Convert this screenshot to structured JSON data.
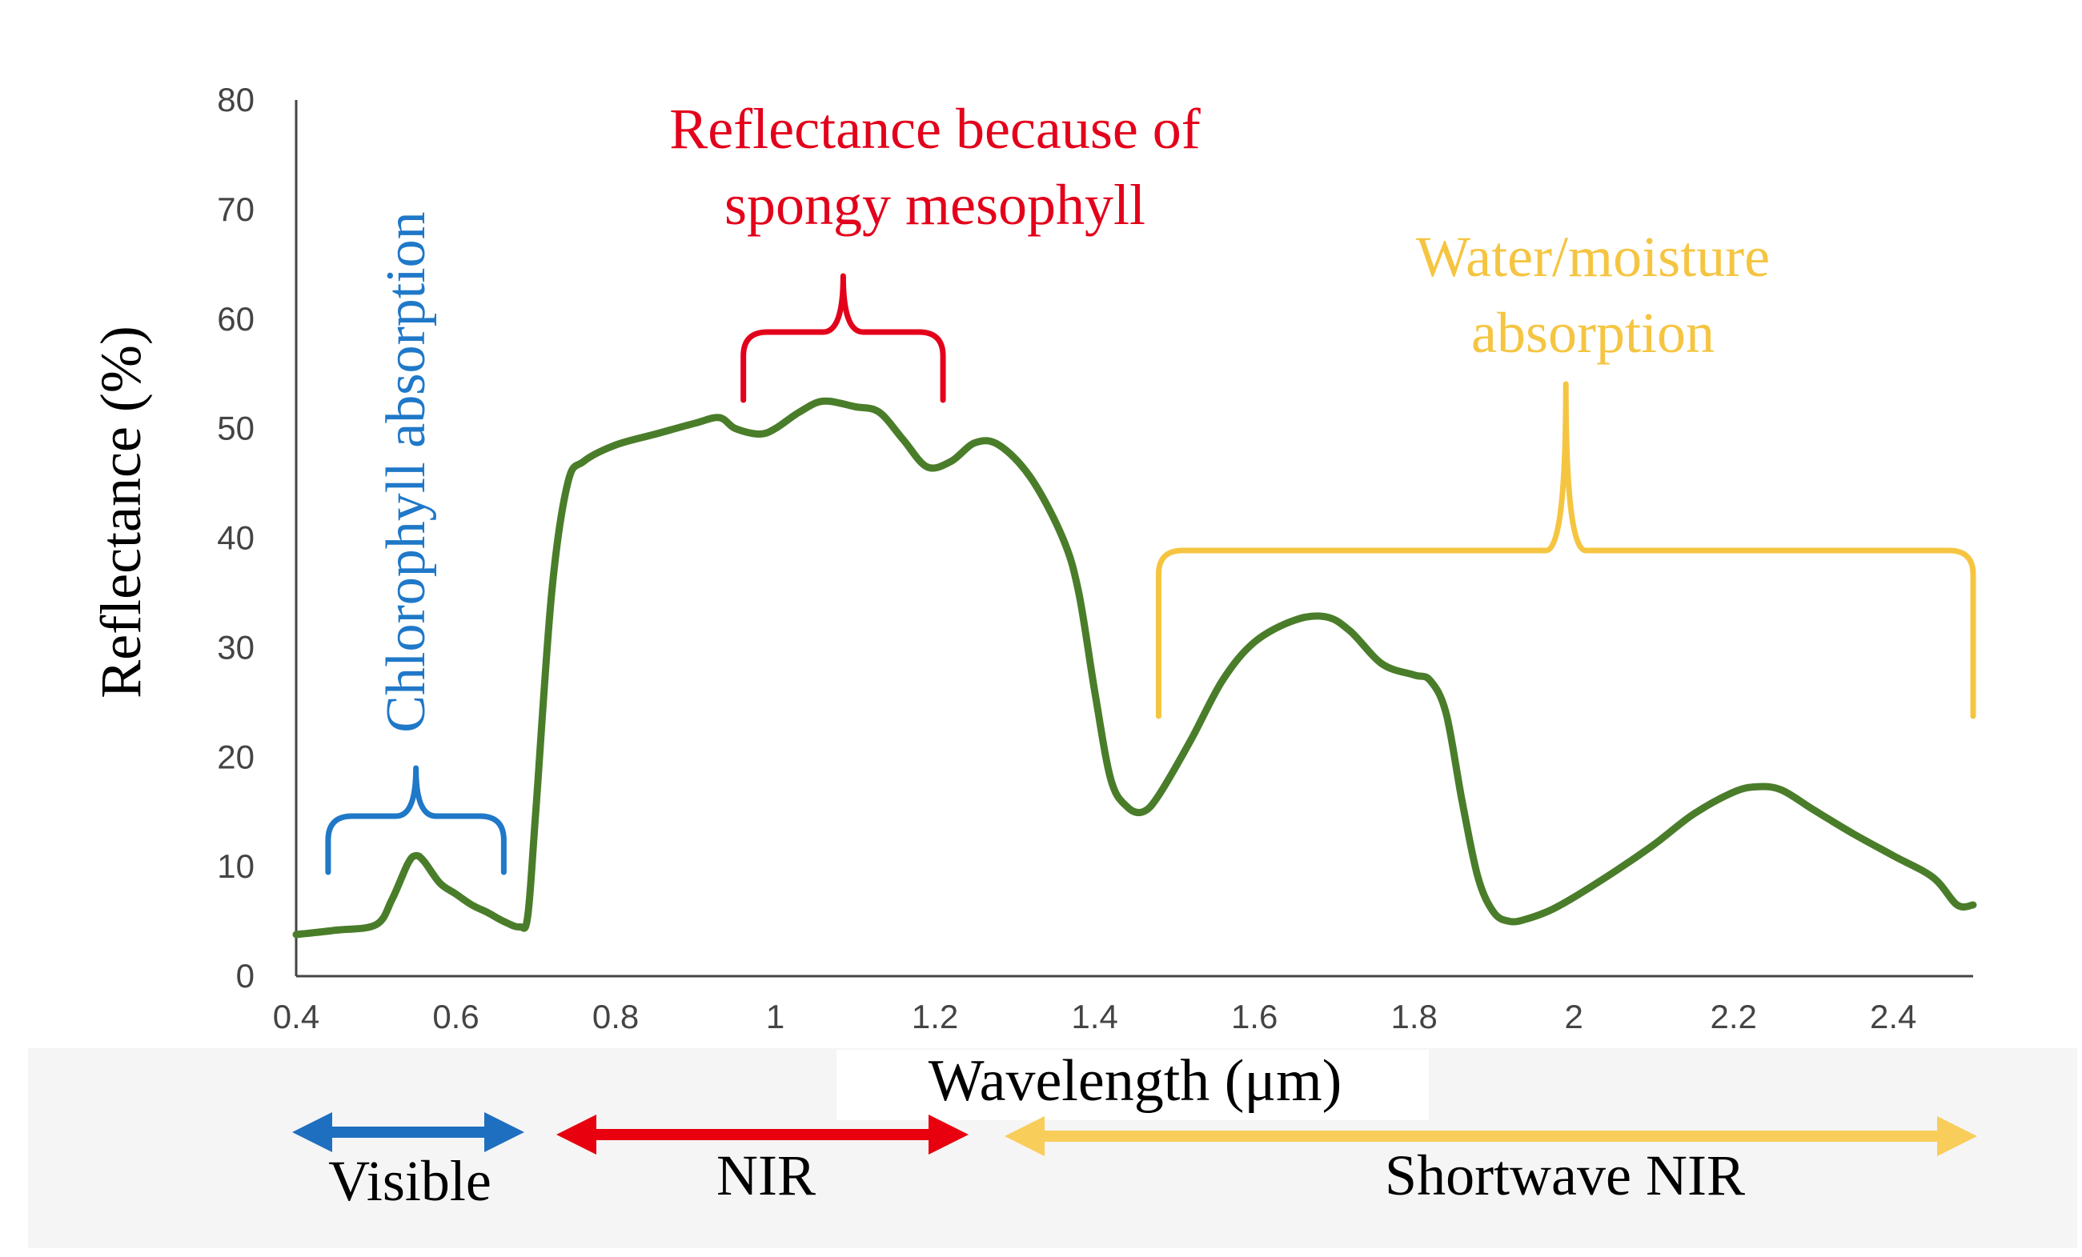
{
  "chart_data": {
    "type": "line",
    "title": "",
    "xlabel": "Wavelength (μm)",
    "ylabel": "Reflectance (%)",
    "xlim": [
      0.4,
      2.5
    ],
    "ylim": [
      0,
      80
    ],
    "x_ticks": [
      0.4,
      0.6,
      0.8,
      1,
      1.2,
      1.4,
      1.6,
      1.8,
      2,
      2.2,
      2.4
    ],
    "x_tick_labels": [
      "0.4",
      "0.6",
      "0.8",
      "1",
      "1.2",
      "1.4",
      "1.6",
      "1.8",
      "2",
      "2.2",
      "2.4"
    ],
    "y_ticks": [
      0,
      10,
      20,
      30,
      40,
      50,
      60,
      70,
      80
    ],
    "y_tick_labels": [
      "0",
      "10",
      "20",
      "30",
      "40",
      "50",
      "60",
      "70",
      "80"
    ],
    "grid": false,
    "legend": "none",
    "series": [
      {
        "color": "#4a7d2a",
        "x": [
          0.4,
          0.45,
          0.5,
          0.52,
          0.54,
          0.55,
          0.56,
          0.58,
          0.6,
          0.62,
          0.64,
          0.66,
          0.68,
          0.69,
          0.7,
          0.72,
          0.74,
          0.76,
          0.8,
          0.85,
          0.9,
          0.93,
          0.95,
          0.98,
          1.0,
          1.03,
          1.06,
          1.1,
          1.13,
          1.16,
          1.19,
          1.22,
          1.25,
          1.28,
          1.32,
          1.36,
          1.38,
          1.4,
          1.42,
          1.44,
          1.46,
          1.48,
          1.52,
          1.56,
          1.6,
          1.65,
          1.69,
          1.72,
          1.76,
          1.8,
          1.82,
          1.84,
          1.86,
          1.88,
          1.9,
          1.92,
          1.94,
          1.97,
          2.0,
          2.05,
          2.1,
          2.15,
          2.2,
          2.23,
          2.26,
          2.3,
          2.35,
          2.4,
          2.45,
          2.48,
          2.5
        ],
        "y": [
          3.8,
          4.2,
          4.7,
          7.0,
          10.3,
          11.0,
          10.5,
          8.5,
          7.5,
          6.5,
          5.8,
          5.0,
          4.5,
          5.5,
          15.0,
          35.0,
          45.0,
          47.0,
          48.5,
          49.5,
          50.5,
          51.0,
          50.0,
          49.5,
          50.0,
          51.5,
          52.5,
          52.0,
          51.5,
          49.0,
          46.5,
          47.0,
          48.7,
          48.5,
          45.5,
          40.0,
          35.0,
          26.0,
          18.0,
          15.5,
          15.0,
          16.5,
          21.5,
          27.0,
          30.5,
          32.5,
          32.8,
          31.5,
          28.5,
          27.5,
          27.0,
          24.0,
          16.0,
          9.0,
          5.8,
          5.0,
          5.2,
          6.0,
          7.2,
          9.5,
          12.0,
          14.8,
          16.8,
          17.3,
          17.0,
          15.2,
          13.0,
          11.0,
          9.0,
          6.5,
          6.5
        ]
      }
    ],
    "annotations": [
      {
        "text_lines": [
          "Chlorophyll absorption"
        ],
        "color": "#1f78c8",
        "x_range": [
          0.44,
          0.66
        ]
      },
      {
        "text_lines": [
          "Reflectance because of",
          "spongy mesophyll"
        ],
        "color": "#e3001b",
        "x_range": [
          0.96,
          1.21
        ]
      },
      {
        "text_lines": [
          "Water/moisture",
          "absorption"
        ],
        "color": "#f5c542",
        "x_range": [
          1.48,
          2.5
        ]
      }
    ],
    "regions": [
      {
        "label": "Visible",
        "color": "#1f6fc0"
      },
      {
        "label": "NIR",
        "color": "#e8000f"
      },
      {
        "label": "Shortwave NIR",
        "color": "#f8cd5a"
      }
    ]
  }
}
